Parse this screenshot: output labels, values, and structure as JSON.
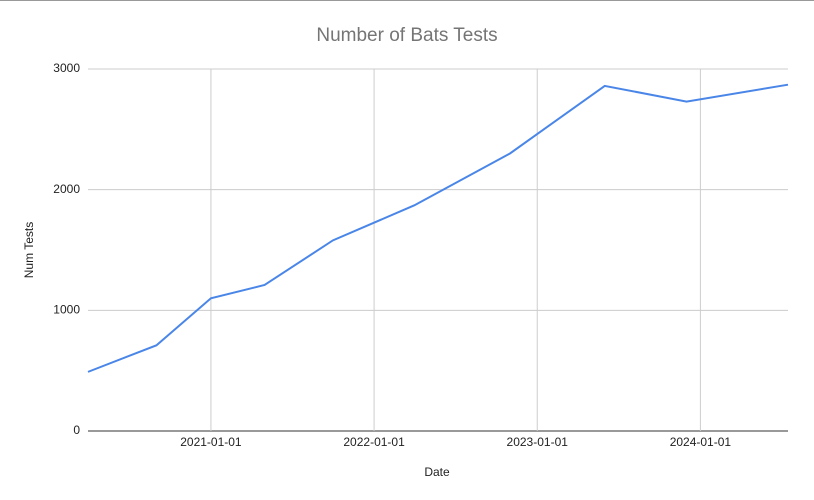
{
  "chart_data": {
    "type": "line",
    "title": "Number of Bats Tests",
    "x_label": "Date",
    "y_label": "Num Tests",
    "x": [
      "2020-04-01",
      "2020-09-01",
      "2021-01-01",
      "2021-05-01",
      "2021-10-01",
      "2022-04-01",
      "2022-11-01",
      "2023-06-01",
      "2023-12-01",
      "2024-07-15"
    ],
    "values": [
      490,
      710,
      1100,
      1210,
      1580,
      1870,
      2300,
      2860,
      2730,
      2870
    ],
    "color": "#4a86e8",
    "xlim": [
      "2020-04-01",
      "2024-07-15"
    ],
    "xticks": [
      "2021-01-01",
      "2022-01-01",
      "2023-01-01",
      "2024-01-01"
    ],
    "ylim": [
      0,
      3000
    ],
    "yticks": [
      0,
      1000,
      2000,
      3000
    ],
    "grid": true
  }
}
